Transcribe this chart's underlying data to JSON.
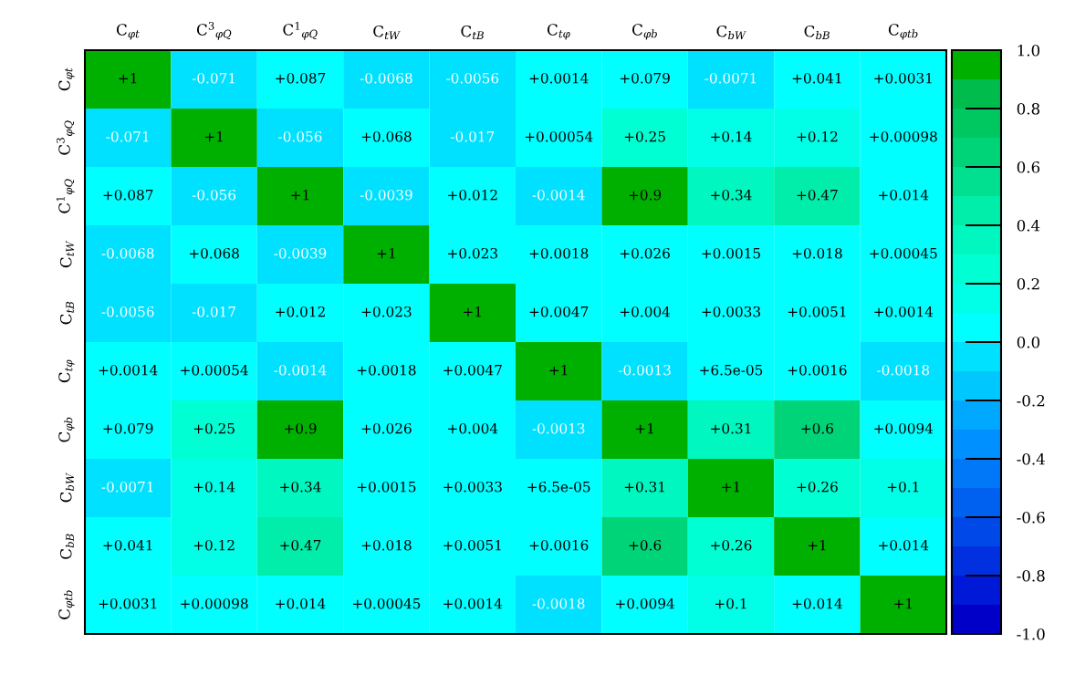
{
  "chart_data": {
    "type": "heatmap",
    "categories": [
      "C$_{φt}$",
      "C$^{3}$$_{φQ}$",
      "C$^{1}$$_{φQ}$",
      "C$_{tW}$",
      "C$_{tB}$",
      "C$_{tφ}$",
      "C$_{φb}$",
      "C$_{bW}$",
      "C$_{bB}$",
      "C$_{φtb}$"
    ],
    "y_categories": [
      "C$_{φt}$",
      "C$^{3}$$_{φQ}$",
      "C$^{1}$$_{φQ}$",
      "C$_{tW}$",
      "C$_{tB}$",
      "C$_{tφ}$",
      "C$_{φb}$",
      "C$_{bW}$",
      "C$_{bB}$",
      "C$_{φtb}$"
    ],
    "cells": [
      [
        1,
        -0.071,
        0.087,
        -0.0068,
        -0.0056,
        0.0014,
        0.079,
        -0.0071,
        0.041,
        0.0031
      ],
      [
        -0.071,
        1,
        -0.056,
        0.068,
        -0.017,
        0.00054,
        0.25,
        0.14,
        0.12,
        0.00098
      ],
      [
        0.087,
        -0.056,
        1,
        -0.0039,
        0.012,
        -0.0014,
        0.9,
        0.34,
        0.47,
        0.014
      ],
      [
        -0.0068,
        0.068,
        -0.0039,
        1,
        0.023,
        0.0018,
        0.026,
        0.0015,
        0.018,
        0.00045
      ],
      [
        -0.0056,
        -0.017,
        0.012,
        0.023,
        1,
        0.0047,
        0.004,
        0.0033,
        0.0051,
        0.0014
      ],
      [
        0.0014,
        0.00054,
        -0.0014,
        0.0018,
        0.0047,
        1,
        -0.0013,
        6.5e-05,
        0.0016,
        -0.0018
      ],
      [
        0.079,
        0.25,
        0.9,
        0.026,
        0.004,
        -0.0013,
        1,
        0.31,
        0.6,
        0.0094
      ],
      [
        -0.0071,
        0.14,
        0.34,
        0.0015,
        0.0033,
        6.5e-05,
        0.31,
        1,
        0.26,
        0.1
      ],
      [
        0.041,
        0.12,
        0.47,
        0.018,
        0.0051,
        0.0016,
        0.6,
        0.26,
        1,
        0.014
      ],
      [
        0.0031,
        0.00098,
        0.014,
        0.00045,
        0.0014,
        -0.0018,
        0.0094,
        0.1,
        0.014,
        1
      ]
    ],
    "cell_labels": [
      [
        "+1",
        "-0.071",
        "+0.087",
        "-0.0068",
        "-0.0056",
        "+0.0014",
        "+0.079",
        "-0.0071",
        "+0.041",
        "+0.0031"
      ],
      [
        "-0.071",
        "+1",
        "-0.056",
        "+0.068",
        "-0.017",
        "+0.00054",
        "+0.25",
        "+0.14",
        "+0.12",
        "+0.00098"
      ],
      [
        "+0.087",
        "-0.056",
        "+1",
        "-0.0039",
        "+0.012",
        "-0.0014",
        "+0.9",
        "+0.34",
        "+0.47",
        "+0.014"
      ],
      [
        "-0.0068",
        "+0.068",
        "-0.0039",
        "+1",
        "+0.023",
        "+0.0018",
        "+0.026",
        "+0.0015",
        "+0.018",
        "+0.00045"
      ],
      [
        "-0.0056",
        "-0.017",
        "+0.012",
        "+0.023",
        "+1",
        "+0.0047",
        "+0.004",
        "+0.0033",
        "+0.0051",
        "+0.0014"
      ],
      [
        "+0.0014",
        "+0.00054",
        "-0.0014",
        "+0.0018",
        "+0.0047",
        "+1",
        "-0.0013",
        "+6.5e-05",
        "+0.0016",
        "-0.0018"
      ],
      [
        "+0.079",
        "+0.25",
        "+0.9",
        "+0.026",
        "+0.004",
        "-0.0013",
        "+1",
        "+0.31",
        "+0.6",
        "+0.0094"
      ],
      [
        "-0.0071",
        "+0.14",
        "+0.34",
        "+0.0015",
        "+0.0033",
        "+6.5e-05",
        "+0.31",
        "+1",
        "+0.26",
        "+0.1"
      ],
      [
        "+0.041",
        "+0.12",
        "+0.47",
        "+0.018",
        "+0.0051",
        "+0.0016",
        "+0.6",
        "+0.26",
        "+1",
        "+0.014"
      ],
      [
        "+0.0031",
        "+0.00098",
        "+0.014",
        "+0.00045",
        "+0.0014",
        "-0.0018",
        "+0.0094",
        "+0.1",
        "+0.014",
        "+1"
      ]
    ],
    "colors": [
      "#0000c8",
      "#0018d8",
      "#0030e0",
      "#0048e8",
      "#0060f0",
      "#0078f8",
      "#0090ff",
      "#00a8ff",
      "#00c8ff",
      "#00e0ff",
      "#00ffff",
      "#00ffe6",
      "#00ffd2",
      "#00f8c0",
      "#00eeaa",
      "#00e090",
      "#00d478",
      "#00c860",
      "#00bc4c",
      "#00b000"
    ],
    "clim": [
      -1,
      1
    ],
    "cticks": [
      {
        "value": -1,
        "label": "-1.0"
      },
      {
        "value": -0.8,
        "label": "-0.8"
      },
      {
        "value": -0.6,
        "label": "-0.6"
      },
      {
        "value": -0.4,
        "label": "-0.4"
      },
      {
        "value": -0.2,
        "label": "-0.2"
      },
      {
        "value": 0,
        "label": "0.0"
      },
      {
        "value": 0.2,
        "label": "0.2"
      },
      {
        "value": 0.4,
        "label": "0.4"
      },
      {
        "value": 0.6,
        "label": "0.6"
      },
      {
        "value": 0.8,
        "label": "0.8"
      },
      {
        "value": 1,
        "label": "1.0"
      }
    ]
  }
}
